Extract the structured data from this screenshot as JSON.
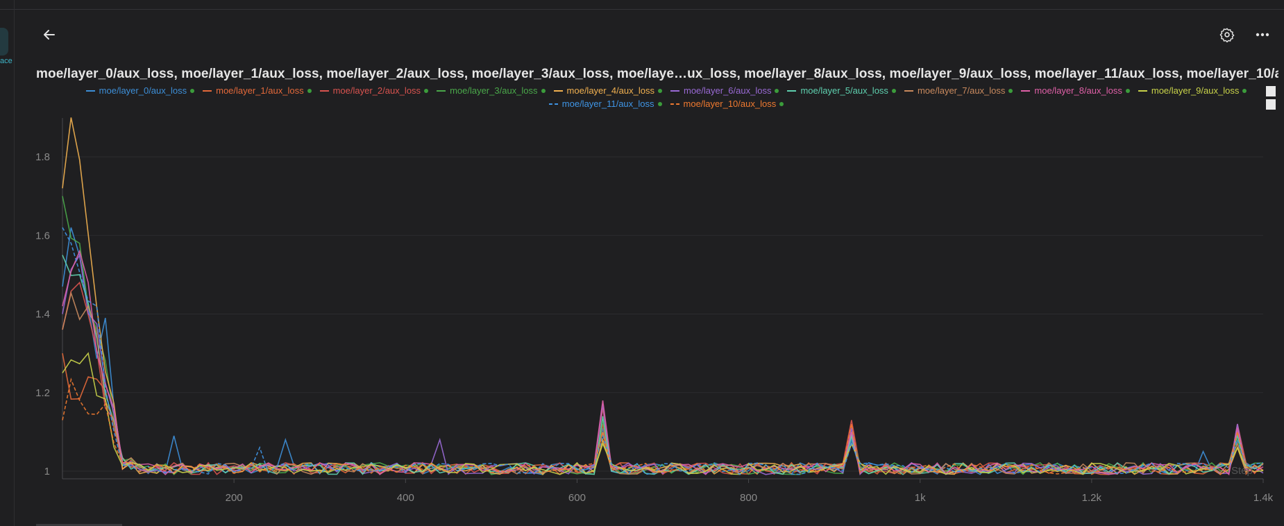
{
  "nav": {
    "left_tab_text": "ace"
  },
  "toolbar": {
    "back_icon": "arrow-left-icon",
    "settings_icon": "gear-icon",
    "more_icon": "more-horizontal-icon"
  },
  "chart_title_text": "moe/layer_0/aux_loss, moe/layer_1/aux_loss, moe/layer_2/aux_loss, moe/layer_3/aux_loss, moe/laye…ux_loss, moe/layer_8/aux_loss, moe/layer_9/aux_loss, moe/layer_11/aux_loss, moe/layer_10/aux_loss",
  "step_label": "Step",
  "chart_data": {
    "type": "line",
    "title": "moe/layer_0/aux_loss, moe/layer_1/aux_loss, moe/layer_2/aux_loss, moe/layer_3/aux_loss, moe/laye…ux_loss, moe/layer_8/aux_loss, moe/layer_9/aux_loss, moe/layer_11/aux_loss, moe/layer_10/aux_loss",
    "xlabel": "Step",
    "ylabel": "",
    "xlim": [
      0,
      1400
    ],
    "ylim": [
      0.98,
      1.9
    ],
    "x_ticks": [
      200,
      400,
      600,
      800,
      1000,
      1200,
      1400
    ],
    "x_tick_labels": [
      "200",
      "400",
      "600",
      "800",
      "1k",
      "1.2k",
      "1.4k"
    ],
    "y_ticks": [
      1,
      1.2,
      1.4,
      1.6,
      1.8
    ],
    "y_tick_labels": [
      "1",
      "1.2",
      "1.4",
      "1.6",
      "1.8"
    ],
    "grid": true,
    "legend_position": "top-center",
    "series": [
      {
        "name": "moe/layer_0/aux_loss",
        "color": "#3d8fd8",
        "dashed": false,
        "start": 1.47,
        "peak_step": 10,
        "peak_value": 1.62,
        "spikes": [
          [
            50,
            1.39
          ],
          [
            130,
            1.09
          ],
          [
            260,
            1.08
          ],
          [
            630,
            1.11
          ],
          [
            920,
            1.08
          ],
          [
            1330,
            1.05
          ],
          [
            1370,
            1.1
          ]
        ]
      },
      {
        "name": "moe/layer_1/aux_loss",
        "color": "#e4693a",
        "dashed": false,
        "start": 1.3,
        "peak_step": 30,
        "peak_value": 1.24,
        "spikes": [
          [
            630,
            1.12
          ],
          [
            920,
            1.12
          ],
          [
            1370,
            1.1
          ]
        ]
      },
      {
        "name": "moe/layer_2/aux_loss",
        "color": "#d9534f",
        "dashed": false,
        "start": 1.36,
        "peak_step": 20,
        "peak_value": 1.48,
        "spikes": [
          [
            630,
            1.16
          ],
          [
            920,
            1.13
          ],
          [
            1370,
            1.12
          ]
        ]
      },
      {
        "name": "moe/layer_3/aux_loss",
        "color": "#4aa84a",
        "dashed": false,
        "start": 1.7,
        "peak_step": 20,
        "peak_value": 1.58,
        "spikes": [
          [
            630,
            1.13
          ],
          [
            920,
            1.1
          ],
          [
            1370,
            1.08
          ]
        ]
      },
      {
        "name": "moe/layer_4/aux_loss",
        "color": "#f2b150",
        "dashed": false,
        "start": 1.72,
        "peak_step": 10,
        "peak_value": 1.9,
        "spikes": [
          [
            630,
            1.08
          ],
          [
            920,
            1.09
          ],
          [
            1370,
            1.06
          ]
        ]
      },
      {
        "name": "moe/layer_6/aux_loss",
        "color": "#9a6ad6",
        "dashed": false,
        "start": 1.4,
        "peak_step": 20,
        "peak_value": 1.55,
        "spikes": [
          [
            440,
            1.08
          ],
          [
            630,
            1.17
          ],
          [
            920,
            1.11
          ],
          [
            1370,
            1.12
          ]
        ]
      },
      {
        "name": "moe/layer_5/aux_loss",
        "color": "#5fd1b0",
        "dashed": false,
        "start": 1.55,
        "peak_step": 20,
        "peak_value": 1.5,
        "spikes": [
          [
            630,
            1.14
          ],
          [
            920,
            1.09
          ],
          [
            1370,
            1.09
          ]
        ]
      },
      {
        "name": "moe/layer_7/aux_loss",
        "color": "#c98a5e",
        "dashed": false,
        "start": 1.36,
        "peak_step": 30,
        "peak_value": 1.42,
        "spikes": [
          [
            630,
            1.1
          ],
          [
            920,
            1.07
          ],
          [
            1370,
            1.07
          ]
        ]
      },
      {
        "name": "moe/layer_8/aux_loss",
        "color": "#e060a8",
        "dashed": false,
        "start": 1.42,
        "peak_step": 20,
        "peak_value": 1.56,
        "spikes": [
          [
            630,
            1.18
          ],
          [
            920,
            1.1
          ],
          [
            1370,
            1.11
          ]
        ]
      },
      {
        "name": "moe/layer_9/aux_loss",
        "color": "#c9d34a",
        "dashed": false,
        "start": 1.25,
        "peak_step": 30,
        "peak_value": 1.3,
        "spikes": [
          [
            630,
            1.07
          ],
          [
            920,
            1.07
          ],
          [
            1370,
            1.06
          ]
        ]
      },
      {
        "name": "moe/layer_11/aux_loss",
        "color": "#3f95e6",
        "dashed": true,
        "start": 1.62,
        "peak_step": 10,
        "peak_value": 1.58,
        "spikes": [
          [
            40,
            1.42
          ],
          [
            230,
            1.06
          ],
          [
            630,
            1.09
          ],
          [
            920,
            1.07
          ],
          [
            1370,
            1.08
          ]
        ]
      },
      {
        "name": "moe/layer_10/aux_loss",
        "color": "#f07a30",
        "dashed": true,
        "start": 1.13,
        "peak_step": 20,
        "peak_value": 1.18,
        "spikes": [
          [
            630,
            1.1
          ],
          [
            920,
            1.12
          ],
          [
            1370,
            1.1
          ]
        ]
      }
    ]
  }
}
